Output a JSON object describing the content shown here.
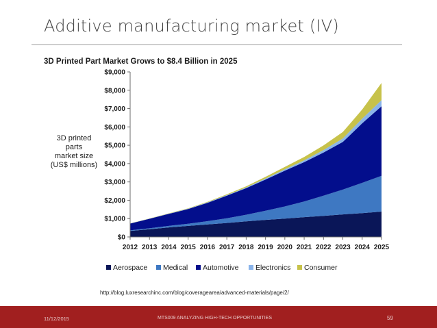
{
  "slide": {
    "title": "Additive manufacturing market (IV)",
    "source": "http://blog.luxresearchinc.com/blog/coveragearea/advanced-materials/page/2/"
  },
  "footer": {
    "date": "11/12/2015",
    "course": "MTS009 ANALYZING HIGH-TECH OPPORTUNITIES",
    "page": "59",
    "color": "#a11f1f"
  },
  "chart_data": {
    "type": "area",
    "stacked": true,
    "title": "3D Printed Part Market Grows to $8.4 Billion in 2025",
    "ylabel_lines": [
      "3D printed",
      "parts",
      "market size",
      "(US$ millions)"
    ],
    "ylim": [
      0,
      9000
    ],
    "yticks": [
      0,
      1000,
      2000,
      3000,
      4000,
      5000,
      6000,
      7000,
      8000,
      9000
    ],
    "ytick_labels": [
      "$0",
      "$1,000",
      "$2,000",
      "$3,000",
      "$4,000",
      "$5,000",
      "$6,000",
      "$7,000",
      "$8,000",
      "$9,000"
    ],
    "x": [
      "2012",
      "2013",
      "2014",
      "2015",
      "2016",
      "2017",
      "2018",
      "2019",
      "2020",
      "2021",
      "2022",
      "2023",
      "2024",
      "2025"
    ],
    "grid": false,
    "legend_position": "bottom",
    "series": [
      {
        "name": "Aerospace",
        "color": "#0a1658",
        "values": [
          330,
          420,
          520,
          600,
          680,
          760,
          850,
          930,
          1000,
          1080,
          1150,
          1230,
          1300,
          1380
        ]
      },
      {
        "name": "Medical",
        "color": "#3e78c2",
        "values": [
          30,
          50,
          80,
          120,
          180,
          260,
          360,
          500,
          660,
          850,
          1100,
          1350,
          1650,
          1950
        ]
      },
      {
        "name": "Automotive",
        "color": "#030e8c",
        "values": [
          370,
          520,
          660,
          800,
          1000,
          1230,
          1450,
          1700,
          1950,
          2150,
          2350,
          2600,
          3250,
          3800
        ]
      },
      {
        "name": "Electronics",
        "color": "#8ab4ea",
        "values": [
          10,
          10,
          15,
          20,
          25,
          30,
          40,
          55,
          75,
          100,
          140,
          190,
          250,
          330
        ]
      },
      {
        "name": "Consumer",
        "color": "#c7c24a",
        "values": [
          5,
          8,
          12,
          20,
          30,
          45,
          60,
          90,
          130,
          180,
          250,
          350,
          500,
          940
        ]
      }
    ]
  }
}
